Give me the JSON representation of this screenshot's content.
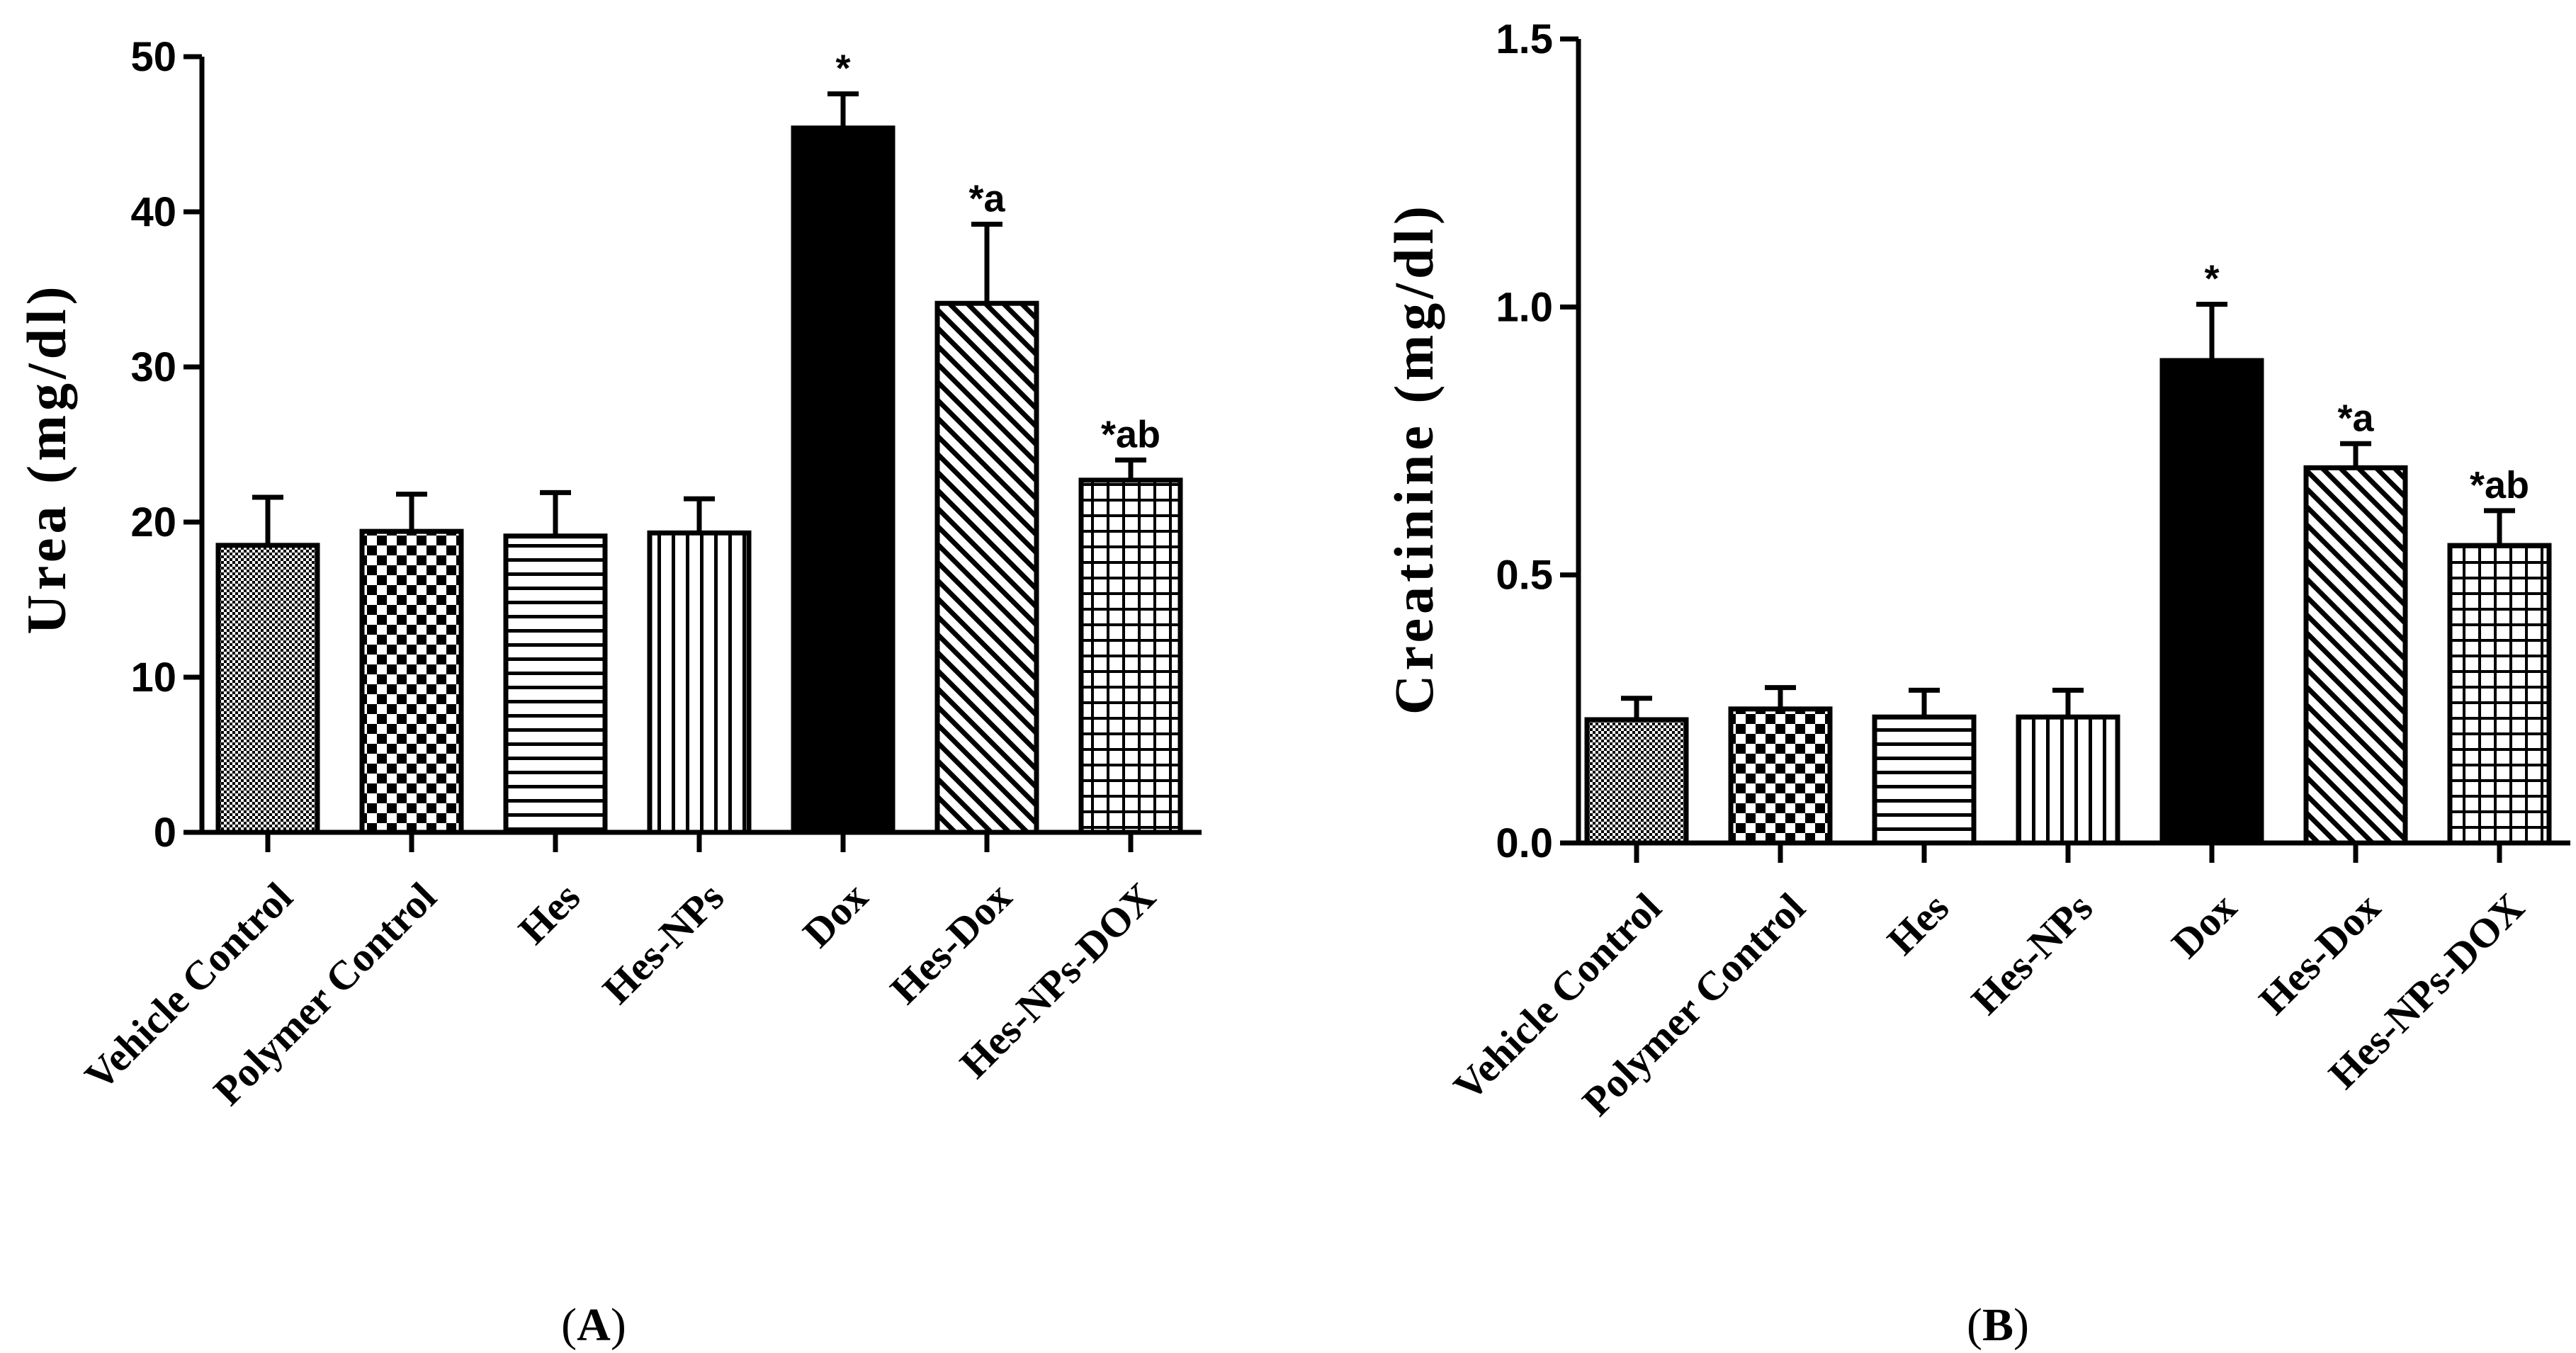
{
  "chart_data": [
    {
      "type": "bar",
      "panel_label": "A",
      "ylabel": "Urea (mg/dl)",
      "xlabel": "",
      "categories": [
        "Vehicle Control",
        "Polymer Control",
        "Hes",
        "Hes-NPs",
        "Dox",
        "Hes-Dox",
        "Hes-NPs-DOX"
      ],
      "values": [
        18.5,
        19.4,
        19.1,
        19.3,
        45.4,
        34.1,
        22.7
      ],
      "errors": [
        3.1,
        2.4,
        2.8,
        2.2,
        2.2,
        5.1,
        1.3
      ],
      "annotations": [
        "",
        "",
        "",
        "",
        "*",
        "*a",
        "*ab"
      ],
      "patterns": [
        "dots",
        "checker",
        "hlines",
        "vlines",
        "solid",
        "diag",
        "grid"
      ],
      "ylim": [
        0,
        50
      ],
      "yticks": [
        "0",
        "10",
        "20",
        "30",
        "40",
        "50"
      ]
    },
    {
      "type": "bar",
      "panel_label": "B",
      "ylabel": "Creatinine (mg/dl)",
      "xlabel": "",
      "categories": [
        "Vehicle Control",
        "Polymer Control",
        "Hes",
        "Hes-NPs",
        "Dox",
        "Hes-Dox",
        "Hes-NPs-DOX"
      ],
      "values": [
        0.23,
        0.25,
        0.235,
        0.235,
        0.9,
        0.7,
        0.555
      ],
      "errors": [
        0.04,
        0.04,
        0.05,
        0.05,
        0.105,
        0.045,
        0.065
      ],
      "annotations": [
        "",
        "",
        "",
        "",
        "*",
        "*a",
        "*ab"
      ],
      "patterns": [
        "dots",
        "checker",
        "hlines",
        "vlines",
        "solid",
        "diag",
        "grid"
      ],
      "ylim": [
        0,
        1.5
      ],
      "yticks": [
        "0.0",
        "0.5",
        "1.0",
        "1.5"
      ]
    }
  ]
}
